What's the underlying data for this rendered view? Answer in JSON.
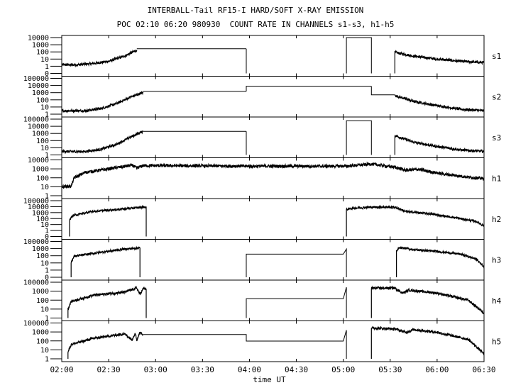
{
  "chart_data": {
    "type": "line",
    "title": "INTERBALL-Tail RF15-I HARD/SOFT X-RAY EMISSION",
    "subtitle": "POC 02:10 06:20 980930  COUNT RATE IN CHANNELS s1-s3, h1-h5",
    "xlabel": "time UT",
    "x_ticks": [
      "02:00",
      "02:30",
      "03:00",
      "03:30",
      "04:00",
      "04:30",
      "05:00",
      "05:30",
      "06:00",
      "06:30"
    ],
    "xlim": [
      "02:00",
      "06:30"
    ],
    "panels": [
      {
        "name": "s1",
        "y_ticks": [
          "10000",
          "1000",
          "100",
          "10",
          "1",
          "0"
        ],
        "ylim": [
          0,
          10000
        ],
        "series": [
          {
            "x": [
              "02:00",
              "02:10",
              "02:20",
              "02:30",
              "02:40",
              "02:48"
            ],
            "y": [
              2,
              2,
              3,
              6,
              30,
              200
            ],
            "noisy": true
          },
          {
            "x": [
              "02:48",
              "03:58"
            ],
            "y": [
              300,
              300
            ],
            "noisy": false
          },
          {
            "x": [
              "03:58",
              "03:58"
            ],
            "y": [
              300,
              0
            ],
            "noisy": false
          },
          {
            "x": [
              "05:02",
              "05:02",
              "05:18",
              "05:18"
            ],
            "y": [
              0,
              10000,
              10000,
              0
            ],
            "noisy": false
          },
          {
            "x": [
              "05:33",
              "05:33",
              "05:45",
              "06:00",
              "06:15",
              "06:30"
            ],
            "y": [
              0,
              100,
              30,
              12,
              6,
              4
            ],
            "noisy": true
          }
        ]
      },
      {
        "name": "s2",
        "y_ticks": [
          "100000",
          "10000",
          "1000",
          "100",
          "10",
          "1"
        ],
        "ylim": [
          1,
          100000
        ],
        "series": [
          {
            "x": [
              "02:00",
              "02:15",
              "02:25",
              "02:35",
              "02:45",
              "02:52"
            ],
            "y": [
              3,
              3,
              6,
              30,
              300,
              1000
            ],
            "noisy": true
          },
          {
            "x": [
              "02:52",
              "03:58"
            ],
            "y": [
              1500,
              1500
            ],
            "noisy": false
          },
          {
            "x": [
              "03:58",
              "03:58",
              "05:18"
            ],
            "y": [
              1500,
              8000,
              8000
            ],
            "noisy": false
          },
          {
            "x": [
              "05:18",
              "05:18",
              "05:33"
            ],
            "y": [
              8000,
              500,
              500
            ],
            "noisy": false
          },
          {
            "x": [
              "05:33",
              "05:45",
              "06:00",
              "06:15",
              "06:30"
            ],
            "y": [
              400,
              60,
              15,
              5,
              3
            ],
            "noisy": true
          }
        ]
      },
      {
        "name": "s3",
        "y_ticks": [
          "100000",
          "10000",
          "1000",
          "100",
          "10",
          "1"
        ],
        "ylim": [
          1,
          100000
        ],
        "series": [
          {
            "x": [
              "02:00",
              "02:15",
              "02:25",
              "02:35",
              "02:45",
              "02:52"
            ],
            "y": [
              3,
              3,
              6,
              30,
              400,
              2000
            ],
            "noisy": true
          },
          {
            "x": [
              "02:52",
              "03:58"
            ],
            "y": [
              2000,
              2000
            ],
            "noisy": false
          },
          {
            "x": [
              "03:58",
              "03:58"
            ],
            "y": [
              2000,
              1
            ],
            "noisy": false
          },
          {
            "x": [
              "05:02",
              "05:02",
              "05:18",
              "05:18"
            ],
            "y": [
              1,
              60000,
              60000,
              1
            ],
            "noisy": false
          },
          {
            "x": [
              "05:33",
              "05:33",
              "05:45",
              "06:00",
              "06:15",
              "06:30"
            ],
            "y": [
              1,
              500,
              60,
              15,
              5,
              3
            ],
            "noisy": true
          }
        ]
      },
      {
        "name": "h1",
        "y_ticks": [
          "10000",
          "1000",
          "100",
          "10",
          "1"
        ],
        "ylim": [
          1,
          10000
        ],
        "series": [
          {
            "x": [
              "02:00",
              "02:06",
              "02:08",
              "02:15",
              "02:30",
              "02:45",
              "02:48",
              "02:52",
              "03:00",
              "03:58",
              "04:30",
              "05:02",
              "05:18",
              "05:33",
              "05:40",
              "05:48",
              "05:55",
              "06:05",
              "06:20",
              "06:30"
            ],
            "y": [
              10,
              12,
              100,
              400,
              1000,
              2500,
              1200,
              2300,
              2300,
              2000,
              2000,
              2000,
              3500,
              1500,
              700,
              900,
              500,
              250,
              120,
              80
            ],
            "noisy": true
          }
        ]
      },
      {
        "name": "h2",
        "y_ticks": [
          "100000",
          "10000",
          "1000",
          "100",
          "10",
          "1",
          "0"
        ],
        "ylim": [
          0,
          100000
        ],
        "series": [
          {
            "x": [
              "02:05",
              "02:05",
              "02:07",
              "02:20",
              "02:40",
              "02:52",
              "02:54",
              "02:54"
            ],
            "y": [
              0,
              50,
              300,
              1500,
              4000,
              8000,
              8000,
              0
            ],
            "noisy": true
          },
          {
            "x": [
              "05:02",
              "05:02",
              "05:05",
              "05:18",
              "05:33",
              "05:40",
              "05:55",
              "06:10",
              "06:25",
              "06:30"
            ],
            "y": [
              0,
              3000,
              5000,
              8000,
              8000,
              1500,
              600,
              150,
              30,
              5
            ],
            "noisy": true
          }
        ]
      },
      {
        "name": "h3",
        "y_ticks": [
          "100000",
          "1000",
          "100",
          "10",
          "1",
          "0"
        ],
        "ylim": [
          0,
          100000
        ],
        "series": [
          {
            "x": [
              "02:06",
              "02:06",
              "02:08",
              "02:25",
              "02:40",
              "02:50",
              "02:50"
            ],
            "y": [
              0,
              30,
              300,
              1500,
              5000,
              8000,
              0
            ],
            "noisy": true
          },
          {
            "x": [
              "03:58",
              "03:58",
              "05:00",
              "05:02",
              "05:02"
            ],
            "y": [
              0,
              700,
              700,
              5000,
              0
            ],
            "noisy": false
          },
          {
            "x": [
              "05:34",
              "05:34",
              "05:36",
              "05:45",
              "06:00",
              "06:15",
              "06:25",
              "06:30"
            ],
            "y": [
              0,
              2000,
              10000,
              4000,
              2000,
              700,
              100,
              5
            ],
            "noisy": true
          }
        ]
      },
      {
        "name": "h4",
        "y_ticks": [
          "100000",
          "1000",
          "100",
          "10",
          "1"
        ],
        "ylim": [
          1,
          100000
        ],
        "series": [
          {
            "x": [
              "02:04",
              "02:04",
              "02:06",
              "02:20",
              "02:40",
              "02:48",
              "02:50",
              "02:52",
              "02:54",
              "02:54"
            ],
            "y": [
              1,
              20,
              200,
              1500,
              4000,
              15000,
              2000,
              12000,
              12000,
              1
            ],
            "noisy": true
          },
          {
            "x": [
              "03:58",
              "03:58",
              "05:00",
              "05:02",
              "05:02"
            ],
            "y": [
              1,
              500,
              500,
              20000,
              1
            ],
            "noisy": false
          },
          {
            "x": [
              "05:18",
              "05:18",
              "05:33",
              "05:38",
              "05:42",
              "06:00",
              "06:20",
              "06:30"
            ],
            "y": [
              1,
              15000,
              15000,
              3000,
              8000,
              3000,
              300,
              5
            ],
            "noisy": true
          }
        ]
      },
      {
        "name": "h5",
        "y_ticks": [
          "100000",
          "1000",
          "100",
          "10",
          "1"
        ],
        "ylim": [
          1,
          100000
        ],
        "series": [
          {
            "x": [
              "02:04",
              "02:04",
              "02:06",
              "02:20",
              "02:40",
              "02:45",
              "02:47",
              "02:48",
              "02:50",
              "02:52"
            ],
            "y": [
              1,
              10,
              100,
              700,
              3000,
              500,
              4000,
              400,
              5000,
              2500
            ],
            "noisy": true
          },
          {
            "x": [
              "02:52",
              "03:58",
              "03:58",
              "05:00",
              "05:02",
              "05:02"
            ],
            "y": [
              2500,
              2500,
              300,
              300,
              10000,
              1
            ],
            "noisy": false
          },
          {
            "x": [
              "05:18",
              "05:18",
              "05:33",
              "05:40",
              "05:45",
              "06:00",
              "06:20",
              "06:30"
            ],
            "y": [
              1,
              20000,
              15000,
              5000,
              12000,
              5000,
              500,
              5
            ],
            "noisy": true
          }
        ]
      }
    ]
  }
}
